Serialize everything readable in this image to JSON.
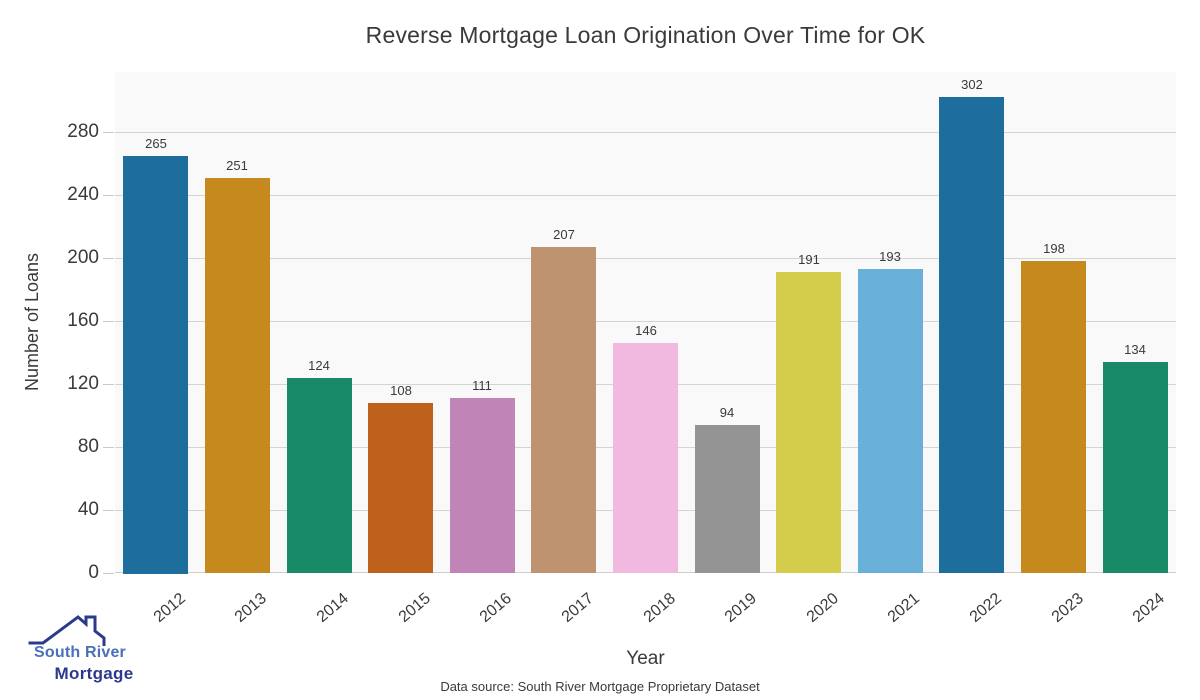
{
  "chart_data": {
    "type": "bar",
    "title": "Reverse Mortgage Loan Origination Over Time for OK",
    "xlabel": "Year",
    "ylabel": "Number of Loans",
    "categories": [
      "2012",
      "2013",
      "2014",
      "2015",
      "2016",
      "2017",
      "2018",
      "2019",
      "2020",
      "2021",
      "2022",
      "2023",
      "2024"
    ],
    "values": [
      265,
      251,
      124,
      108,
      111,
      207,
      146,
      94,
      191,
      193,
      302,
      198,
      134
    ],
    "bar_colors": [
      "#1d6e9d",
      "#c6891e",
      "#198a68",
      "#bd611d",
      "#c184b6",
      "#bd9370",
      "#f2b9e0",
      "#949494",
      "#d4cd4c",
      "#69b0d8",
      "#1d6e9d",
      "#c6891e",
      "#198a68"
    ],
    "ylim": [
      0,
      318
    ],
    "y_ticks": [
      0,
      40,
      80,
      120,
      160,
      200,
      240,
      280
    ],
    "grid": true,
    "legend": "none",
    "value_labels": true,
    "plot_bg": "#f9f9f9",
    "grid_color": "#d4d4d4",
    "text_color": "#3a3a3a"
  },
  "footer": {
    "source_note": "Data source: South River Mortgage Proprietary Dataset"
  },
  "logo": {
    "line1": "South River",
    "line2": "Mortgage",
    "line1_color": "#4a6fbb",
    "line2_color": "#2c3a8c",
    "icon_color": "#2c3a8c"
  }
}
